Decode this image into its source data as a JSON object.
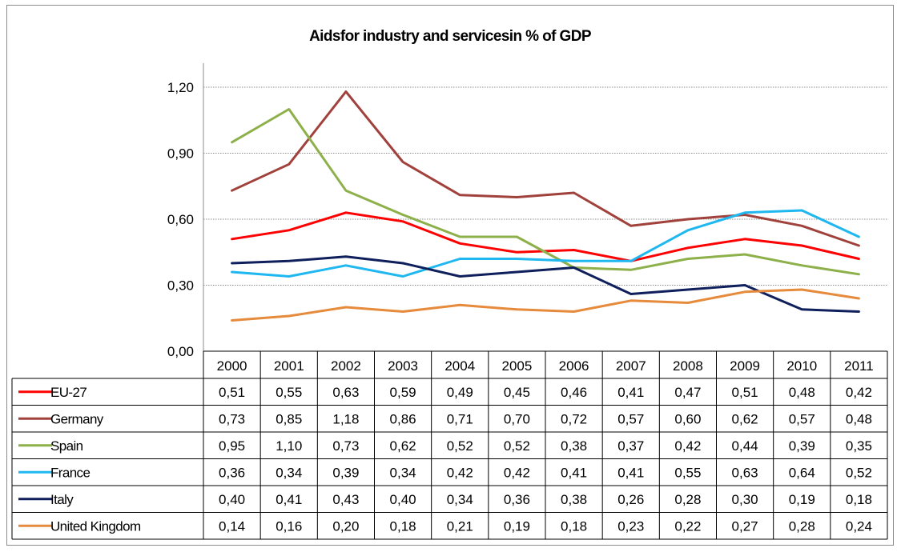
{
  "chart_data": {
    "type": "line",
    "title": "Aidsfor industry and servicesin % of GDP",
    "categories": [
      "2000",
      "2001",
      "2002",
      "2003",
      "2004",
      "2005",
      "2006",
      "2007",
      "2008",
      "2009",
      "2010",
      "2011"
    ],
    "ylim": [
      0,
      1.2
    ],
    "yticks": [
      "0,00",
      "0,30",
      "0,60",
      "0,90",
      "1,20"
    ],
    "grid": true,
    "legend": "data-table-left",
    "series": [
      {
        "name": "EU-27",
        "color": "#ff0000",
        "values": [
          0.51,
          0.55,
          0.63,
          0.59,
          0.49,
          0.45,
          0.46,
          0.41,
          0.47,
          0.51,
          0.48,
          0.42
        ],
        "labels": [
          "0,51",
          "0,55",
          "0,63",
          "0,59",
          "0,49",
          "0,45",
          "0,46",
          "0,41",
          "0,47",
          "0,51",
          "0,48",
          "0,42"
        ]
      },
      {
        "name": "Germany",
        "color": "#a0413c",
        "values": [
          0.73,
          0.85,
          1.18,
          0.86,
          0.71,
          0.7,
          0.72,
          0.57,
          0.6,
          0.62,
          0.57,
          0.48
        ],
        "labels": [
          "0,73",
          "0,85",
          "1,18",
          "0,86",
          "0,71",
          "0,70",
          "0,72",
          "0,57",
          "0,60",
          "0,62",
          "0,57",
          "0,48"
        ]
      },
      {
        "name": "Spain",
        "color": "#8db04a",
        "values": [
          0.95,
          1.1,
          0.73,
          0.62,
          0.52,
          0.52,
          0.38,
          0.37,
          0.42,
          0.44,
          0.39,
          0.35
        ],
        "labels": [
          "0,95",
          "1,10",
          "0,73",
          "0,62",
          "0,52",
          "0,52",
          "0,38",
          "0,37",
          "0,42",
          "0,44",
          "0,39",
          "0,35"
        ]
      },
      {
        "name": "France",
        "color": "#1fb7f0",
        "values": [
          0.36,
          0.34,
          0.39,
          0.34,
          0.42,
          0.42,
          0.41,
          0.41,
          0.55,
          0.63,
          0.64,
          0.52
        ],
        "labels": [
          "0,36",
          "0,34",
          "0,39",
          "0,34",
          "0,42",
          "0,42",
          "0,41",
          "0,41",
          "0,55",
          "0,63",
          "0,64",
          "0,52"
        ]
      },
      {
        "name": "Italy",
        "color": "#0f1f5c",
        "values": [
          0.4,
          0.41,
          0.43,
          0.4,
          0.34,
          0.36,
          0.38,
          0.26,
          0.28,
          0.3,
          0.19,
          0.18
        ],
        "labels": [
          "0,40",
          "0,41",
          "0,43",
          "0,40",
          "0,34",
          "0,36",
          "0,38",
          "0,26",
          "0,28",
          "0,30",
          "0,19",
          "0,18"
        ]
      },
      {
        "name": "United Kingdom",
        "color": "#e68a3c",
        "values": [
          0.14,
          0.16,
          0.2,
          0.18,
          0.21,
          0.19,
          0.18,
          0.23,
          0.22,
          0.27,
          0.28,
          0.24
        ],
        "labels": [
          "0,14",
          "0,16",
          "0,20",
          "0,18",
          "0,21",
          "0,19",
          "0,18",
          "0,23",
          "0,22",
          "0,27",
          "0,28",
          "0,24"
        ]
      }
    ]
  }
}
